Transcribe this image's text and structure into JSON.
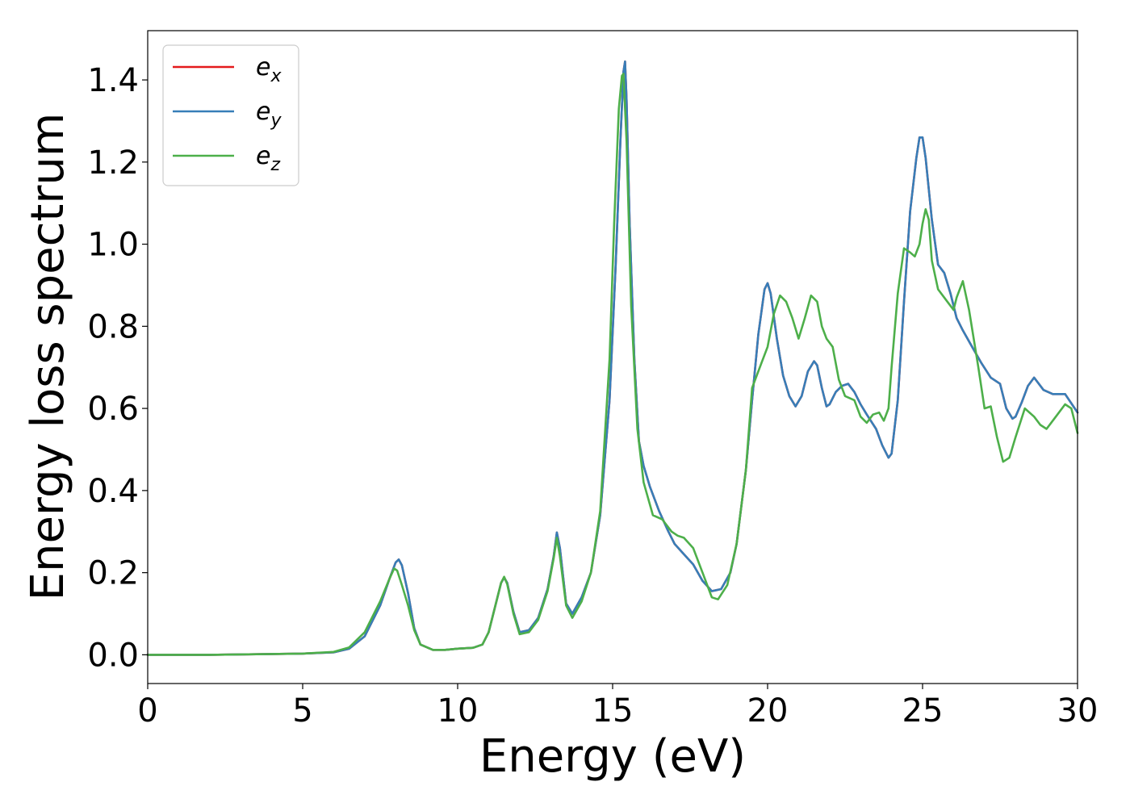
{
  "chart_data": {
    "type": "line",
    "xlabel": "Energy (eV)",
    "ylabel": "Energy loss spectrum",
    "xlim": [
      0,
      30
    ],
    "ylim": [
      -0.07,
      1.52
    ],
    "xticks": [
      0,
      5,
      10,
      15,
      20,
      25,
      30
    ],
    "xtick_labels": [
      "0",
      "5",
      "10",
      "15",
      "20",
      "25",
      "30"
    ],
    "yticks": [
      0.0,
      0.2,
      0.4,
      0.6,
      0.8,
      1.0,
      1.2,
      1.4
    ],
    "ytick_labels": [
      "0.0",
      "0.2",
      "0.4",
      "0.6",
      "0.8",
      "1.0",
      "1.2",
      "1.4"
    ],
    "grid": false,
    "legend_position": "top-left",
    "series": [
      {
        "name": "e_x",
        "color": "#e41a1c",
        "x": [
          0,
          2,
          4,
          5,
          6,
          6.5,
          7,
          7.5,
          7.8,
          8.0,
          8.1,
          8.2,
          8.4,
          8.6,
          8.8,
          9.2,
          9.6,
          10.0,
          10.5,
          10.8,
          11.0,
          11.2,
          11.4,
          11.5,
          11.6,
          11.8,
          12.0,
          12.3,
          12.6,
          12.9,
          13.1,
          13.2,
          13.3,
          13.5,
          13.7,
          14.0,
          14.3,
          14.6,
          14.9,
          15.1,
          15.25,
          15.35,
          15.4,
          15.45,
          15.55,
          15.7,
          15.85,
          16.0,
          16.2,
          16.5,
          16.8,
          17.0,
          17.3,
          17.6,
          17.9,
          18.2,
          18.5,
          18.8,
          19.0,
          19.3,
          19.5,
          19.7,
          19.9,
          20.0,
          20.1,
          20.3,
          20.5,
          20.7,
          20.9,
          21.1,
          21.3,
          21.5,
          21.6,
          21.75,
          21.9,
          22.0,
          22.2,
          22.4,
          22.6,
          22.8,
          23.0,
          23.2,
          23.5,
          23.7,
          23.9,
          24.0,
          24.2,
          24.4,
          24.6,
          24.8,
          24.9,
          25.0,
          25.1,
          25.3,
          25.5,
          25.7,
          25.9,
          26.1,
          26.3,
          26.6,
          26.9,
          27.2,
          27.5,
          27.7,
          27.9,
          28.0,
          28.2,
          28.4,
          28.6,
          28.9,
          29.2,
          29.6,
          30.0
        ],
        "y": [
          0.0,
          0.0,
          0.002,
          0.003,
          0.006,
          0.015,
          0.045,
          0.12,
          0.185,
          0.225,
          0.232,
          0.218,
          0.15,
          0.065,
          0.025,
          0.012,
          0.012,
          0.015,
          0.017,
          0.025,
          0.055,
          0.115,
          0.175,
          0.188,
          0.175,
          0.105,
          0.055,
          0.06,
          0.09,
          0.16,
          0.24,
          0.298,
          0.26,
          0.125,
          0.1,
          0.14,
          0.2,
          0.34,
          0.62,
          0.95,
          1.25,
          1.42,
          1.445,
          1.35,
          1.05,
          0.72,
          0.52,
          0.46,
          0.41,
          0.35,
          0.3,
          0.27,
          0.245,
          0.22,
          0.18,
          0.155,
          0.16,
          0.2,
          0.27,
          0.45,
          0.62,
          0.78,
          0.89,
          0.905,
          0.88,
          0.77,
          0.68,
          0.63,
          0.605,
          0.63,
          0.69,
          0.715,
          0.705,
          0.65,
          0.605,
          0.61,
          0.64,
          0.655,
          0.66,
          0.64,
          0.61,
          0.585,
          0.55,
          0.51,
          0.48,
          0.49,
          0.62,
          0.86,
          1.08,
          1.21,
          1.26,
          1.26,
          1.21,
          1.06,
          0.95,
          0.93,
          0.88,
          0.82,
          0.79,
          0.75,
          0.71,
          0.675,
          0.66,
          0.6,
          0.575,
          0.58,
          0.615,
          0.655,
          0.675,
          0.645,
          0.635,
          0.635,
          0.59
        ]
      },
      {
        "name": "e_y",
        "color": "#377eb8",
        "x": [
          0,
          2,
          4,
          5,
          6,
          6.5,
          7,
          7.5,
          7.8,
          8.0,
          8.1,
          8.2,
          8.4,
          8.6,
          8.8,
          9.2,
          9.6,
          10.0,
          10.5,
          10.8,
          11.0,
          11.2,
          11.4,
          11.5,
          11.6,
          11.8,
          12.0,
          12.3,
          12.6,
          12.9,
          13.1,
          13.2,
          13.3,
          13.5,
          13.7,
          14.0,
          14.3,
          14.6,
          14.9,
          15.1,
          15.25,
          15.35,
          15.4,
          15.45,
          15.55,
          15.7,
          15.85,
          16.0,
          16.2,
          16.5,
          16.8,
          17.0,
          17.3,
          17.6,
          17.9,
          18.2,
          18.5,
          18.8,
          19.0,
          19.3,
          19.5,
          19.7,
          19.9,
          20.0,
          20.1,
          20.3,
          20.5,
          20.7,
          20.9,
          21.1,
          21.3,
          21.5,
          21.6,
          21.75,
          21.9,
          22.0,
          22.2,
          22.4,
          22.6,
          22.8,
          23.0,
          23.2,
          23.5,
          23.7,
          23.9,
          24.0,
          24.2,
          24.4,
          24.6,
          24.8,
          24.9,
          25.0,
          25.1,
          25.3,
          25.5,
          25.7,
          25.9,
          26.1,
          26.3,
          26.6,
          26.9,
          27.2,
          27.5,
          27.7,
          27.9,
          28.0,
          28.2,
          28.4,
          28.6,
          28.9,
          29.2,
          29.6,
          30.0
        ],
        "y": [
          0.0,
          0.0,
          0.002,
          0.003,
          0.006,
          0.015,
          0.045,
          0.12,
          0.185,
          0.225,
          0.232,
          0.218,
          0.15,
          0.065,
          0.025,
          0.012,
          0.012,
          0.015,
          0.017,
          0.025,
          0.055,
          0.115,
          0.175,
          0.188,
          0.175,
          0.105,
          0.055,
          0.06,
          0.09,
          0.16,
          0.24,
          0.298,
          0.26,
          0.125,
          0.1,
          0.14,
          0.2,
          0.34,
          0.62,
          0.95,
          1.25,
          1.42,
          1.445,
          1.35,
          1.05,
          0.72,
          0.52,
          0.46,
          0.41,
          0.35,
          0.3,
          0.27,
          0.245,
          0.22,
          0.18,
          0.155,
          0.16,
          0.2,
          0.27,
          0.45,
          0.62,
          0.78,
          0.89,
          0.905,
          0.88,
          0.77,
          0.68,
          0.63,
          0.605,
          0.63,
          0.69,
          0.715,
          0.705,
          0.65,
          0.605,
          0.61,
          0.64,
          0.655,
          0.66,
          0.64,
          0.61,
          0.585,
          0.55,
          0.51,
          0.48,
          0.49,
          0.62,
          0.86,
          1.08,
          1.21,
          1.26,
          1.26,
          1.21,
          1.06,
          0.95,
          0.93,
          0.88,
          0.82,
          0.79,
          0.75,
          0.71,
          0.675,
          0.66,
          0.6,
          0.575,
          0.58,
          0.615,
          0.655,
          0.675,
          0.645,
          0.635,
          0.635,
          0.59
        ]
      },
      {
        "name": "e_z",
        "color": "#4daf4a",
        "x": [
          0,
          2,
          4,
          5,
          6,
          6.5,
          7,
          7.5,
          7.8,
          7.95,
          8.05,
          8.2,
          8.4,
          8.6,
          8.8,
          9.2,
          9.6,
          10.0,
          10.5,
          10.8,
          11.0,
          11.2,
          11.4,
          11.5,
          11.6,
          11.8,
          12.0,
          12.3,
          12.6,
          12.9,
          13.1,
          13.2,
          13.3,
          13.5,
          13.7,
          14.0,
          14.3,
          14.6,
          14.9,
          15.05,
          15.2,
          15.3,
          15.35,
          15.45,
          15.6,
          15.8,
          16.0,
          16.3,
          16.6,
          16.9,
          17.1,
          17.3,
          17.6,
          17.9,
          18.2,
          18.4,
          18.7,
          19.0,
          19.3,
          19.5,
          19.8,
          20.0,
          20.2,
          20.4,
          20.6,
          20.8,
          21.0,
          21.2,
          21.4,
          21.6,
          21.75,
          21.9,
          22.1,
          22.3,
          22.5,
          22.8,
          23.0,
          23.2,
          23.4,
          23.6,
          23.75,
          23.9,
          24.0,
          24.2,
          24.4,
          24.6,
          24.75,
          24.9,
          25.0,
          25.1,
          25.2,
          25.3,
          25.5,
          25.8,
          26.0,
          26.1,
          26.3,
          26.5,
          26.8,
          27.0,
          27.2,
          27.4,
          27.6,
          27.8,
          28.0,
          28.3,
          28.6,
          28.8,
          29.0,
          29.3,
          29.6,
          29.8,
          30.0
        ],
        "y": [
          0.0,
          0.0,
          0.002,
          0.003,
          0.007,
          0.018,
          0.055,
          0.13,
          0.185,
          0.21,
          0.205,
          0.17,
          0.12,
          0.06,
          0.025,
          0.012,
          0.012,
          0.015,
          0.017,
          0.025,
          0.055,
          0.115,
          0.175,
          0.19,
          0.172,
          0.1,
          0.05,
          0.055,
          0.085,
          0.155,
          0.235,
          0.285,
          0.24,
          0.12,
          0.09,
          0.13,
          0.2,
          0.35,
          0.72,
          1.05,
          1.33,
          1.41,
          1.415,
          1.25,
          0.85,
          0.55,
          0.42,
          0.34,
          0.33,
          0.3,
          0.29,
          0.285,
          0.26,
          0.2,
          0.14,
          0.135,
          0.17,
          0.27,
          0.45,
          0.65,
          0.71,
          0.75,
          0.83,
          0.875,
          0.86,
          0.82,
          0.77,
          0.82,
          0.875,
          0.86,
          0.8,
          0.77,
          0.75,
          0.67,
          0.63,
          0.62,
          0.58,
          0.565,
          0.585,
          0.59,
          0.57,
          0.6,
          0.7,
          0.88,
          0.99,
          0.98,
          0.97,
          1.0,
          1.05,
          1.085,
          1.06,
          0.96,
          0.89,
          0.86,
          0.84,
          0.87,
          0.91,
          0.84,
          0.7,
          0.6,
          0.605,
          0.53,
          0.47,
          0.48,
          0.53,
          0.6,
          0.58,
          0.56,
          0.55,
          0.58,
          0.61,
          0.6,
          0.54
        ]
      }
    ]
  }
}
